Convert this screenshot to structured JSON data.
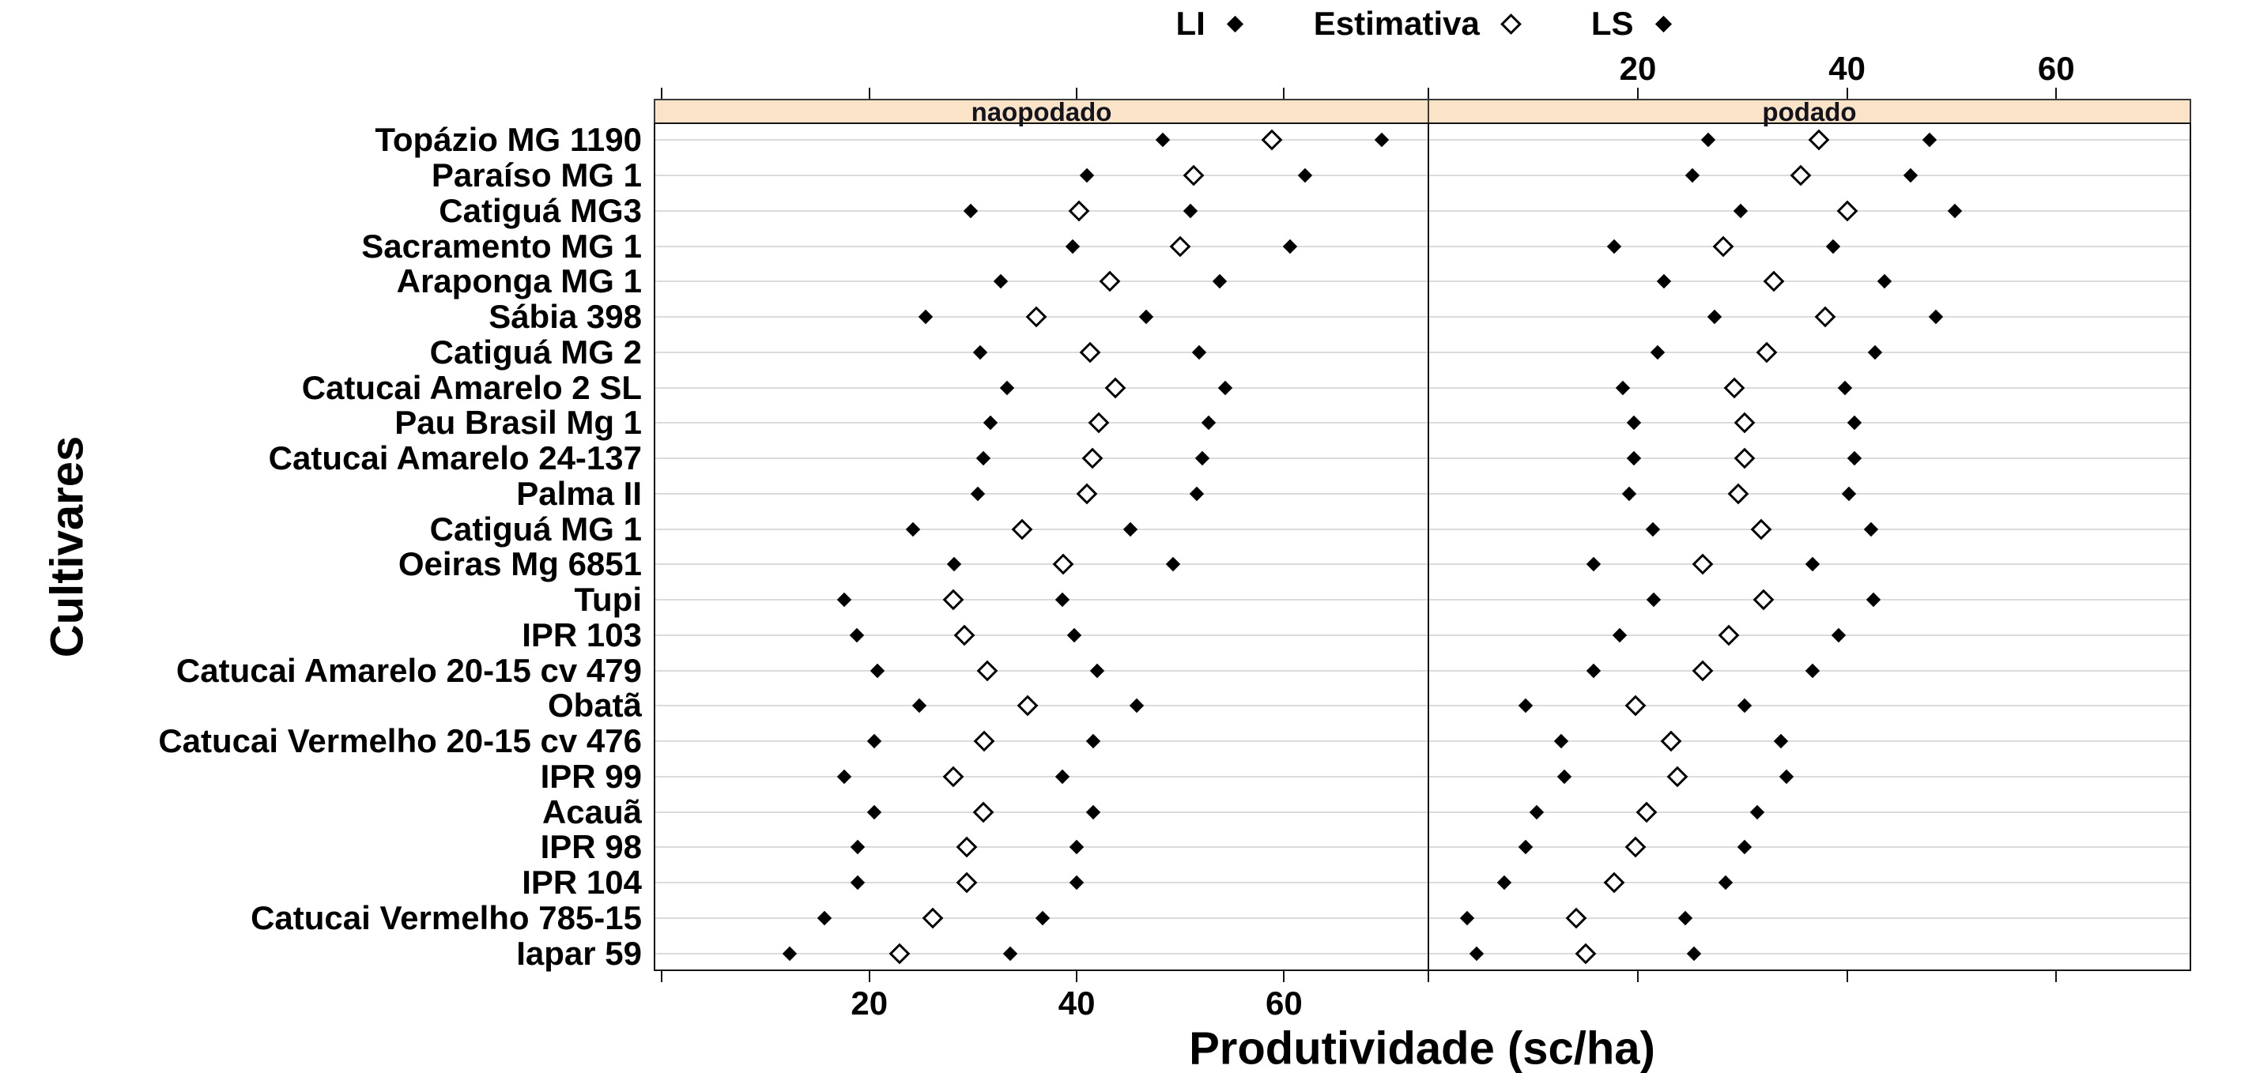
{
  "figure_colors": {
    "background": "#ffffff",
    "strip_background": "#FBE3C7",
    "strip_border": "#3a3a3a",
    "panel_border": "#151515",
    "gridline": "#dbdbdb",
    "marker": "#000000"
  },
  "legend": {
    "items": [
      {
        "label": "LI",
        "marker": "filled-diamond"
      },
      {
        "label": "Estimativa",
        "marker": "open-diamond"
      },
      {
        "label": "LS",
        "marker": "filled-diamond"
      }
    ]
  },
  "ylabel": "Cultivares",
  "xlabel": "Produtividade (sc/ha)",
  "chart_data": {
    "type": "scatter",
    "title": "",
    "xlabel": "Produtividade (sc/ha)",
    "ylabel": "Cultivares",
    "legend_position": "top",
    "grid": "horizontal",
    "categories": [
      "Topázio MG 1190",
      "Paraíso MG 1",
      "Catiguá MG3",
      "Sacramento MG 1",
      "Araponga MG 1",
      "Sábia 398",
      "Catiguá MG 2",
      "Catucai Amarelo 2 SL",
      "Pau Brasil Mg 1",
      "Catucai Amarelo 24-137",
      "Palma II",
      "Catiguá MG 1",
      "Oeiras Mg 6851",
      "Tupi",
      "IPR 103",
      "Catucai Amarelo 20-15 cv 479",
      "Obatã",
      "Catucai Vermelho 20-15 cv 476",
      "IPR 99",
      "Acauã",
      "IPR 98",
      "IPR 104",
      "Catucai Vermelho 785-15",
      "Iapar 59"
    ],
    "panels": [
      {
        "name": "naopodado",
        "xdomain": [
          -0.8,
          74.0
        ],
        "ticks": [
          0,
          20,
          40,
          60
        ],
        "labels_bottom": [
          20,
          40,
          60
        ],
        "labels_top": [],
        "series": [
          {
            "name": "LI",
            "marker": "filled-diamond",
            "values": [
              48.3,
              41.0,
              29.8,
              39.6,
              32.7,
              25.4,
              30.7,
              33.3,
              31.7,
              31.0,
              30.5,
              24.2,
              28.2,
              17.6,
              18.8,
              20.8,
              24.8,
              20.5,
              17.6,
              20.5,
              18.9,
              18.9,
              15.7,
              12.3
            ]
          },
          {
            "name": "Estimativa",
            "marker": "open-diamond",
            "values": [
              58.8,
              51.3,
              40.2,
              50.0,
              43.2,
              36.1,
              41.3,
              43.7,
              42.1,
              41.5,
              41.0,
              34.7,
              38.7,
              28.1,
              29.2,
              31.4,
              35.3,
              31.1,
              28.1,
              31.0,
              29.4,
              29.4,
              26.1,
              22.9
            ]
          },
          {
            "name": "LS",
            "marker": "filled-diamond",
            "values": [
              69.4,
              62.0,
              51.0,
              60.6,
              53.8,
              46.7,
              51.8,
              54.3,
              52.7,
              52.1,
              51.6,
              45.2,
              49.3,
              38.6,
              39.8,
              42.0,
              45.8,
              41.6,
              38.6,
              41.6,
              40.0,
              40.0,
              36.7,
              33.6
            ]
          }
        ]
      },
      {
        "name": "podado",
        "xdomain": [
          -0.1,
          72.9
        ],
        "ticks": [
          0,
          20,
          40,
          60
        ],
        "labels_bottom": [],
        "labels_top": [
          20,
          40,
          60
        ],
        "series": [
          {
            "name": "LI",
            "marker": "filled-diamond",
            "values": [
              26.7,
              25.2,
              29.8,
              17.7,
              22.5,
              27.3,
              21.9,
              18.6,
              19.6,
              19.6,
              19.2,
              21.4,
              15.8,
              21.5,
              18.3,
              15.8,
              9.3,
              12.7,
              13.0,
              10.3,
              9.3,
              7.2,
              3.7,
              4.6
            ]
          },
          {
            "name": "Estimativa",
            "marker": "open-diamond",
            "values": [
              37.3,
              35.6,
              40.0,
              28.2,
              33.0,
              37.9,
              32.3,
              29.2,
              30.2,
              30.2,
              29.6,
              31.8,
              26.2,
              32.0,
              28.7,
              26.2,
              19.8,
              23.2,
              23.8,
              20.8,
              19.8,
              17.7,
              14.1,
              15.0
            ]
          },
          {
            "name": "LS",
            "marker": "filled-diamond",
            "values": [
              47.9,
              46.1,
              50.3,
              38.7,
              43.6,
              48.5,
              42.7,
              39.8,
              40.7,
              40.7,
              40.2,
              42.3,
              36.7,
              42.5,
              39.2,
              36.7,
              30.2,
              33.7,
              34.2,
              31.4,
              30.2,
              28.4,
              24.5,
              25.4
            ]
          }
        ]
      }
    ]
  }
}
